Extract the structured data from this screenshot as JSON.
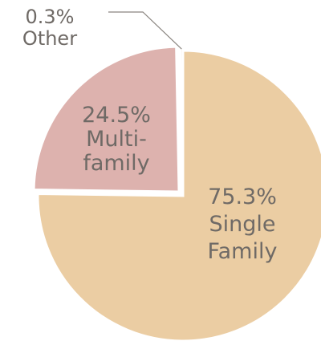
{
  "chart_data": {
    "type": "pie",
    "slices": [
      {
        "value": 75.3,
        "percent_label": "75.3%",
        "label_lines": [
          "Single",
          "Family"
        ],
        "color": "#ebcda3"
      },
      {
        "value": 24.5,
        "percent_label": "24.5%",
        "label_lines": [
          "Multi-",
          "family"
        ],
        "color": "#ddb2ae"
      },
      {
        "value": 0.3,
        "percent_label": "0.3%",
        "label_lines": [
          "Other"
        ],
        "color": "#f3e8dc"
      }
    ],
    "title": "",
    "legend": "none"
  }
}
